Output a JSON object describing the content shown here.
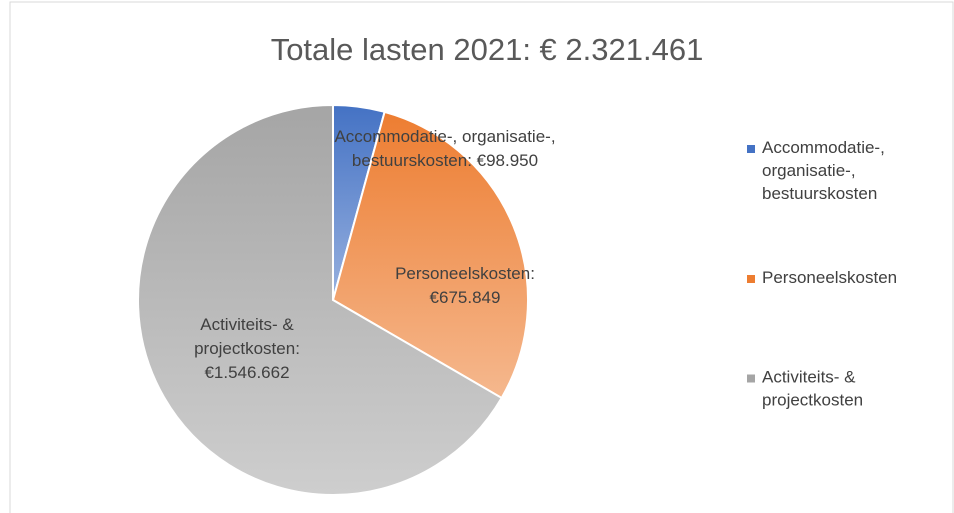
{
  "chart_data": {
    "type": "pie",
    "title": "Totale lasten 2021: € 2.321.461",
    "categories": [
      "Accommodatie-, organisatie-, bestuurskosten",
      "Personeelskosten",
      "Activiteits- & projectkosten"
    ],
    "values": [
      98950,
      675849,
      1546662
    ],
    "value_labels": [
      "Accommodatie-, organisatie-, bestuurskosten: €98.950",
      "Personeelskosten: €675.849",
      "Activiteits- & projectkosten: €1.546.662"
    ],
    "colors": [
      "#4472c4",
      "#ed7d31",
      "#a5a5a5"
    ],
    "legend": "right"
  }
}
